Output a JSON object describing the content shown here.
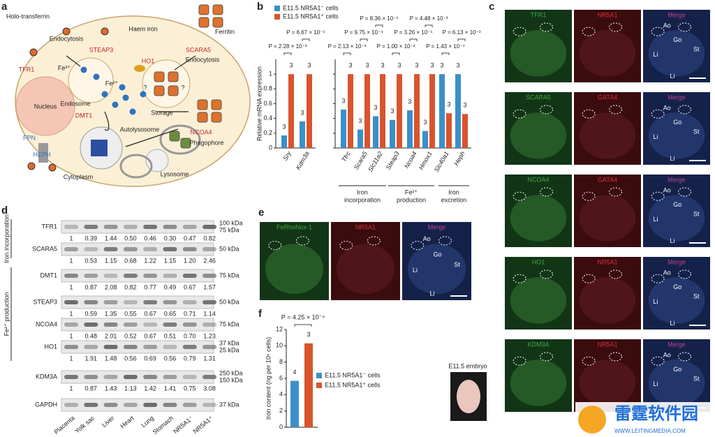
{
  "panel_letters": [
    "a",
    "b",
    "c",
    "d",
    "e",
    "f"
  ],
  "a": {
    "labels": [
      "Holo-transferrin",
      "TFR1",
      "Endocytosis",
      "STEAP3",
      "Fe³⁺",
      "Fe²⁺",
      "Endosome",
      "DMT1",
      "Nucleus",
      "Haem iron",
      "HO1",
      "Ferritin",
      "SCARA5",
      "Endocytosis",
      "Storage",
      "NCOA4",
      "Phagophore",
      "Autolysosome",
      "Lysosome",
      "Cytoplasm",
      "FPN",
      "HEPH",
      "?",
      "?"
    ]
  },
  "chart_data": [
    {
      "type": "bar",
      "ylabel": "Relative mRNA expression",
      "categories": [
        "Sry",
        "Kdm3a",
        "Tfrc",
        "Scara5",
        "Slc11a2",
        "Steap3",
        "Ncoa4",
        "Hmox1",
        "Slc40a1",
        "Heph"
      ],
      "series": [
        {
          "name": "E11.5 NR5A1⁻ cells",
          "color": "#3b8fcb",
          "values": [
            0.17,
            0.36,
            0.52,
            0.25,
            0.43,
            0.38,
            0.51,
            0.23,
            1.0,
            1.0
          ],
          "n": [
            "3",
            "3",
            "3",
            "3",
            "3",
            "3",
            "3",
            "3",
            "3",
            "3"
          ]
        },
        {
          "name": "E11.5 NR5A1⁺ cells",
          "color": "#d9542c",
          "values": [
            1.0,
            1.0,
            1.0,
            1.0,
            1.0,
            1.0,
            1.0,
            1.0,
            0.47,
            0.46
          ],
          "n": [
            "3",
            "3",
            "3",
            "3",
            "3",
            "3",
            "3",
            "3",
            "3",
            "3"
          ]
        }
      ],
      "ylim": [
        0,
        1.2
      ],
      "yticks": [
        0,
        0.2,
        0.4,
        0.6,
        0.8,
        1
      ],
      "annotations": [
        "P = 2.28 × 10⁻³",
        "P = 6.67 × 10⁻⁵",
        "P = 2.13 × 10⁻³",
        "P = 9.75 × 10⁻⁴",
        "P = 8.36 × 10⁻⁵",
        "P = 1.00 × 10⁻²",
        "P = 3.26 × 10⁻⁵",
        "P = 4.48 × 10⁻³",
        "P = 1.43 × 10⁻⁴",
        "P = 6.13 × 10⁻³"
      ],
      "groups": [
        [
          "Iron",
          "incorporation"
        ],
        [
          "Fe²⁺",
          "production"
        ],
        [
          "Iron",
          "excretion"
        ]
      ]
    },
    {
      "type": "bar",
      "ylabel": "Iron content (ng per 10⁶ cells)",
      "series": [
        {
          "name": "E11.5 NR5A1⁻ cells",
          "color": "#3b8fcb",
          "values": [
            5.7
          ],
          "n": [
            "4"
          ]
        },
        {
          "name": "E11.5 NR5A1⁺ cells",
          "color": "#d9542c",
          "values": [
            10.3
          ],
          "n": [
            "3"
          ]
        }
      ],
      "ylim": [
        0,
        12
      ],
      "yticks": [
        0,
        2,
        4,
        6,
        8,
        10,
        12
      ],
      "annotations": [
        "P = 4.25 × 10⁻⁴"
      ]
    }
  ],
  "c": {
    "label_colors": [
      "#3aa84a",
      "#d8323c",
      "#c2408a"
    ],
    "rows": [
      {
        "channels": [
          "TFR1",
          "NR5A1",
          "Merge"
        ],
        "annotations": [
          "Ao",
          "Go",
          "St",
          "Li",
          "Li"
        ]
      },
      {
        "channels": [
          "SCARA5",
          "GATA4",
          "Merge"
        ],
        "annotations": [
          "Ao",
          "Go",
          "St",
          "Li",
          "Li"
        ]
      },
      {
        "channels": [
          "NCOA4",
          "GATA4",
          "Merge"
        ],
        "annotations": [
          "Ao",
          "Go",
          "St",
          "Li",
          "Li"
        ]
      },
      {
        "channels": [
          "HO1",
          "NR5A1",
          "Merge"
        ],
        "annotations": [
          "Ao",
          "Go",
          "St",
          "Li",
          "Li"
        ]
      },
      {
        "channels": [
          "KDM3A",
          "NR5A1",
          "Merge"
        ],
        "annotations": [
          "Ao",
          "Go",
          "St",
          "Li",
          "Li"
        ]
      }
    ]
  },
  "d": {
    "lanes": [
      "Placenta",
      "Yolk sac",
      "Liver",
      "Heart",
      "Lung",
      "Stomach",
      "NR5A1⁻",
      "NR5A1⁺"
    ],
    "groups": [
      "Iron incorporation",
      "Fe²⁺ production"
    ],
    "rows": [
      {
        "label": "TFR1",
        "markers": [
          "100 kDa",
          "75 kDa"
        ],
        "values": [
          "1",
          "0.39",
          "1.44",
          "0.50",
          "0.46",
          "0.30",
          "0.47",
          "0.82"
        ]
      },
      {
        "label": "SCARA5",
        "markers": [
          "50 kDa"
        ],
        "values": [
          "1",
          "0.53",
          "1.15",
          "0.68",
          "1.22",
          "1.15",
          "1.20",
          "2.46"
        ]
      },
      {
        "label": "DMT1",
        "markers": [
          "75 kDa"
        ],
        "values": [
          "1",
          "0.87",
          "2.08",
          "0.82",
          "0.77",
          "0.49",
          "0.67",
          "1.57"
        ]
      },
      {
        "label": "STEAP3",
        "markers": [
          "50 kDa"
        ],
        "values": [
          "1",
          "0.59",
          "1.35",
          "0.55",
          "0.67",
          "0.65",
          "0.71",
          "1.14"
        ]
      },
      {
        "label": "NCOA4",
        "markers": [
          "75 kDa"
        ],
        "values": [
          "1",
          "0.48",
          "2.01",
          "0.52",
          "0.67",
          "0.51",
          "0.70",
          "1.23"
        ]
      },
      {
        "label": "HO1",
        "markers": [
          "37 kDa",
          "25 kDa"
        ],
        "values": [
          "1",
          "1.91",
          "1.48",
          "0.56",
          "0.69",
          "0.56",
          "0.79",
          "1.31"
        ]
      },
      {
        "label": "KDM3A",
        "markers": [
          "250 kDa",
          "150 kDa"
        ],
        "values": [
          "1",
          "0.87",
          "1.43",
          "1.13",
          "1.42",
          "1.41",
          "0.75",
          "3.08"
        ]
      },
      {
        "label": "GAPDH",
        "markers": [
          "37 kDa"
        ],
        "values": []
      }
    ]
  },
  "e": {
    "channels": [
      "FeRhoNox-1",
      "NR5A1",
      "Merge"
    ],
    "annotations": [
      "Ao",
      "Go",
      "St",
      "Li",
      "Li"
    ]
  },
  "embryo_label": "E11.5 embryo",
  "watermark": {
    "title": "雷霆软件园",
    "url": "WWW.LEITINGMEDIA.COM"
  }
}
